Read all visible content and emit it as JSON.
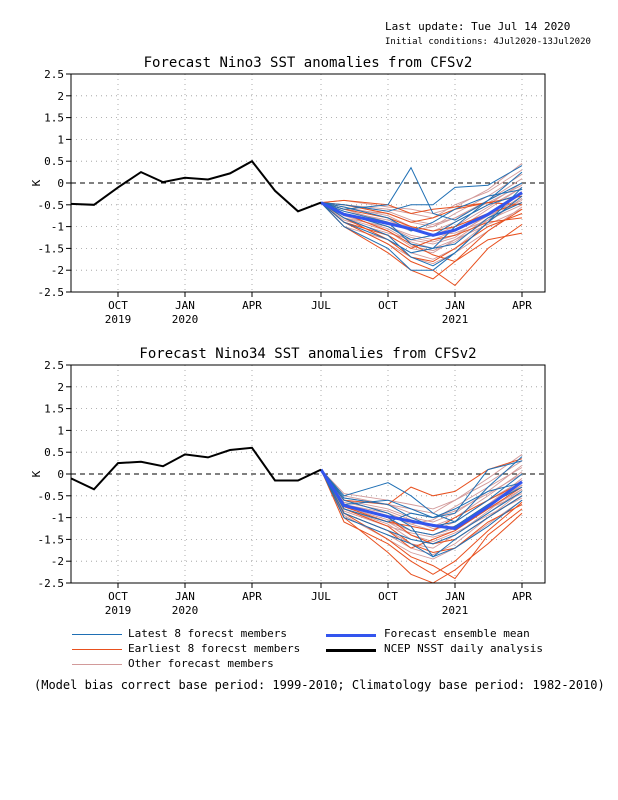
{
  "header": {
    "last_update": "Last update: Tue Jul 14 2020",
    "initial_conditions": "Initial conditions: 4Jul2020-13Jul2020"
  },
  "colors": {
    "latest": "#1f6fb4",
    "earliest": "#e8501e",
    "other": "#d29a9a",
    "mean": "#3355ee",
    "obs": "#000000"
  },
  "legend": [
    {
      "label": "Latest 8 forecst members",
      "color": "#1f6fb4",
      "style": "thin"
    },
    {
      "label": "Forecast ensemble mean",
      "color": "#3355ee",
      "style": "thick"
    },
    {
      "label": "Earliest 8 forecst members",
      "color": "#e8501e",
      "style": "thin"
    },
    {
      "label": "NCEP NSST daily analysis",
      "color": "#000000",
      "style": "thick"
    },
    {
      "label": "Other forecast members",
      "color": "#d29a9a",
      "style": "thin"
    }
  ],
  "footnote": "(Model bias correct base period: 1999-2010; Climatology base period: 1982-2010)",
  "chart_data": [
    {
      "type": "line",
      "title": "Forecast Nino3 SST anomalies from CFSv2",
      "ylabel": "K",
      "ylim": [
        -2.5,
        2.5
      ],
      "yticks": [
        "2.5",
        "2",
        "1.5",
        "1",
        "0.5",
        "0",
        "-0.5",
        "-1",
        "-1.5",
        "-2",
        "-2.5"
      ],
      "xticks": [
        {
          "month": "OCT",
          "year": "2019"
        },
        {
          "month": "JAN",
          "year": "2020"
        },
        {
          "month": "APR",
          "year": ""
        },
        {
          "month": "JUL",
          "year": ""
        },
        {
          "month": "OCT",
          "year": ""
        },
        {
          "month": "JAN",
          "year": "2021"
        },
        {
          "month": "APR",
          "year": ""
        }
      ],
      "grid": "dotted",
      "observed": [
        -0.48,
        -0.5,
        -0.1,
        0.25,
        0.02,
        0.12,
        0.08,
        0.22,
        0.5,
        -0.18,
        -0.65,
        -0.45
      ],
      "ensemble_mean": [
        -0.45,
        -0.72,
        -0.93,
        -1.05,
        -1.2,
        -1.08,
        -0.72,
        -0.22
      ],
      "members_latest": [
        [
          -0.45,
          -0.6,
          -0.5,
          0.35,
          -0.7,
          -0.85,
          -0.4,
          0.0
        ],
        [
          -0.45,
          -0.9,
          -1.3,
          -1.6,
          -1.5,
          -1.0,
          -0.4,
          0.25
        ],
        [
          -0.45,
          -0.8,
          -1.2,
          -1.7,
          -1.9,
          -1.6,
          -0.9,
          -0.1
        ],
        [
          -0.45,
          -0.55,
          -0.8,
          -1.1,
          -0.9,
          -0.6,
          -0.3,
          -0.15
        ],
        [
          -0.45,
          -1.0,
          -1.5,
          -2.0,
          -2.0,
          -1.6,
          -0.9,
          -0.3
        ],
        [
          -0.45,
          -0.5,
          -0.65,
          -0.5,
          -0.5,
          -0.1,
          -0.05,
          0.4
        ],
        [
          -0.45,
          -0.7,
          -1.0,
          -1.3,
          -1.2,
          -0.9,
          -0.5,
          -0.25
        ],
        [
          -0.45,
          -0.65,
          -0.9,
          -1.4,
          -1.5,
          -1.4,
          -0.8,
          -0.45
        ]
      ],
      "members_earliest": [
        [
          -0.45,
          -0.9,
          -1.4,
          -1.8,
          -2.0,
          -2.35,
          -1.5,
          -0.95
        ],
        [
          -0.45,
          -0.7,
          -1.1,
          -1.4,
          -1.65,
          -1.8,
          -1.3,
          -1.15
        ],
        [
          -0.45,
          -0.4,
          -0.5,
          -0.7,
          -0.6,
          -0.55,
          -0.45,
          -0.5
        ],
        [
          -0.45,
          -1.0,
          -1.6,
          -2.0,
          -2.2,
          -1.8,
          -1.1,
          -0.6
        ],
        [
          -0.45,
          -0.8,
          -1.3,
          -1.7,
          -1.8,
          -1.5,
          -1.0,
          -0.7
        ],
        [
          -0.45,
          -0.6,
          -0.8,
          -1.0,
          -1.1,
          -1.0,
          -0.7,
          -0.45
        ],
        [
          -0.45,
          -0.9,
          -1.2,
          -1.5,
          -1.3,
          -1.2,
          -0.9,
          -0.8
        ],
        [
          -0.45,
          -0.5,
          -0.7,
          -0.9,
          -0.8,
          -0.6,
          -0.45,
          -0.3
        ]
      ],
      "members_other": [
        [
          -0.45,
          -0.6,
          -0.7,
          -0.9,
          -1.0,
          -0.8,
          -0.4,
          0.1
        ],
        [
          -0.45,
          -0.8,
          -1.0,
          -1.2,
          -1.3,
          -1.1,
          -0.6,
          -0.1
        ],
        [
          -0.45,
          -0.5,
          -0.6,
          -0.7,
          -0.8,
          -0.5,
          -0.2,
          0.3
        ],
        [
          -0.45,
          -0.9,
          -1.2,
          -1.5,
          -1.6,
          -1.3,
          -0.8,
          -0.3
        ],
        [
          -0.45,
          -0.7,
          -0.9,
          -1.0,
          -1.1,
          -0.9,
          -0.5,
          0.0
        ],
        [
          -0.45,
          -0.55,
          -0.75,
          -1.0,
          -1.2,
          -1.15,
          -0.85,
          -0.5
        ],
        [
          -0.45,
          -1.0,
          -1.3,
          -1.6,
          -1.75,
          -1.5,
          -0.9,
          -0.35
        ],
        [
          -0.45,
          -0.65,
          -0.85,
          -1.05,
          -1.2,
          -1.0,
          -0.55,
          -0.1
        ],
        [
          -0.45,
          -0.4,
          -0.55,
          -0.6,
          -0.7,
          -0.55,
          -0.15,
          0.45
        ],
        [
          -0.45,
          -0.75,
          -1.05,
          -1.35,
          -1.5,
          -1.3,
          -0.95,
          -0.6
        ],
        [
          -0.45,
          -0.85,
          -1.15,
          -1.3,
          -1.4,
          -1.25,
          -0.7,
          -0.25
        ],
        [
          -0.45,
          -0.6,
          -0.9,
          -1.1,
          -1.0,
          -0.7,
          -0.3,
          0.2
        ],
        [
          -0.45,
          -0.9,
          -1.4,
          -1.7,
          -1.85,
          -1.6,
          -1.1,
          -0.55
        ],
        [
          -0.45,
          -0.5,
          -0.65,
          -0.85,
          -0.95,
          -0.8,
          -0.45,
          -0.05
        ],
        [
          -0.45,
          -0.7,
          -1.0,
          -1.25,
          -1.35,
          -1.2,
          -0.75,
          -0.4
        ],
        [
          -0.45,
          -0.8,
          -1.1,
          -1.45,
          -1.55,
          -1.35,
          -0.85,
          -0.2
        ]
      ]
    },
    {
      "type": "line",
      "title": "Forecast Nino34 SST anomalies from CFSv2",
      "ylabel": "K",
      "ylim": [
        -2.5,
        2.5
      ],
      "yticks": [
        "2.5",
        "2",
        "1.5",
        "1",
        "0.5",
        "0",
        "-0.5",
        "-1",
        "-1.5",
        "-2",
        "-2.5"
      ],
      "xticks": [
        {
          "month": "OCT",
          "year": "2019"
        },
        {
          "month": "JAN",
          "year": "2020"
        },
        {
          "month": "APR",
          "year": ""
        },
        {
          "month": "JUL",
          "year": ""
        },
        {
          "month": "OCT",
          "year": ""
        },
        {
          "month": "JAN",
          "year": "2021"
        },
        {
          "month": "APR",
          "year": ""
        }
      ],
      "grid": "dotted",
      "observed": [
        -0.1,
        -0.35,
        0.25,
        0.28,
        0.18,
        0.45,
        0.38,
        0.55,
        0.6,
        -0.15,
        -0.15,
        0.1
      ],
      "ensemble_mean": [
        0.1,
        -0.72,
        -0.98,
        -1.08,
        -1.18,
        -1.25,
        -0.75,
        -0.18
      ],
      "members_latest": [
        [
          0.1,
          -0.5,
          -0.2,
          -0.5,
          -0.9,
          -1.1,
          -0.3,
          0.4
        ],
        [
          0.1,
          -0.7,
          -0.6,
          -0.8,
          -1.0,
          -0.9,
          0.1,
          0.3
        ],
        [
          0.1,
          -0.9,
          -1.3,
          -1.5,
          -1.6,
          -1.4,
          -0.9,
          -0.4
        ],
        [
          0.1,
          -0.6,
          -0.9,
          -1.2,
          -1.9,
          -1.7,
          -1.2,
          -0.6
        ],
        [
          0.1,
          -0.8,
          -1.1,
          -0.9,
          -1.0,
          -0.8,
          -0.4,
          -0.2
        ],
        [
          0.1,
          -0.55,
          -0.7,
          -1.0,
          -1.2,
          -1.1,
          -0.6,
          0.0
        ],
        [
          0.1,
          -1.0,
          -1.4,
          -1.6,
          -1.9,
          -1.5,
          -1.0,
          -0.5
        ],
        [
          0.1,
          -0.7,
          -1.0,
          -1.3,
          -1.4,
          -1.2,
          -0.7,
          -0.3
        ]
      ],
      "members_earliest": [
        [
          0.1,
          -1.0,
          -1.8,
          -2.3,
          -2.5,
          -2.2,
          -1.6,
          -0.9
        ],
        [
          0.1,
          -0.9,
          -1.5,
          -1.9,
          -2.1,
          -2.4,
          -1.4,
          -0.8
        ],
        [
          0.1,
          -0.6,
          -0.7,
          -0.3,
          -0.5,
          -0.4,
          0.1,
          0.35
        ],
        [
          0.1,
          -0.8,
          -1.2,
          -1.6,
          -1.8,
          -1.7,
          -1.1,
          -0.7
        ],
        [
          0.1,
          -1.1,
          -1.6,
          -2.0,
          -2.3,
          -2.0,
          -1.3,
          -0.65
        ],
        [
          0.1,
          -0.7,
          -1.0,
          -1.4,
          -1.6,
          -1.5,
          -1.0,
          -0.5
        ],
        [
          0.1,
          -0.9,
          -1.3,
          -1.7,
          -1.5,
          -1.3,
          -0.8,
          -0.3
        ],
        [
          0.1,
          -0.75,
          -1.1,
          -1.2,
          -1.3,
          -1.0,
          -0.6,
          -0.2
        ]
      ],
      "members_other": [
        [
          0.1,
          -0.6,
          -0.8,
          -1.0,
          -1.1,
          -0.9,
          -0.4,
          0.2
        ],
        [
          0.1,
          -0.8,
          -1.1,
          -1.3,
          -1.4,
          -1.2,
          -0.7,
          -0.1
        ],
        [
          0.1,
          -0.5,
          -0.7,
          -0.8,
          -0.9,
          -0.6,
          -0.2,
          0.3
        ],
        [
          0.1,
          -0.9,
          -1.3,
          -1.6,
          -1.7,
          -1.4,
          -0.9,
          -0.35
        ],
        [
          0.1,
          -0.7,
          -0.9,
          -1.1,
          -1.2,
          -1.0,
          -0.5,
          0.05
        ],
        [
          0.1,
          -0.65,
          -0.85,
          -1.05,
          -1.25,
          -1.2,
          -0.8,
          -0.45
        ],
        [
          0.1,
          -1.0,
          -1.4,
          -1.7,
          -1.85,
          -1.6,
          -1.0,
          -0.4
        ],
        [
          0.1,
          -0.7,
          -0.95,
          -1.15,
          -1.3,
          -1.1,
          -0.6,
          -0.15
        ],
        [
          0.1,
          -0.45,
          -0.6,
          -0.7,
          -0.8,
          -0.6,
          -0.1,
          0.45
        ],
        [
          0.1,
          -0.8,
          -1.1,
          -1.4,
          -1.55,
          -1.35,
          -0.95,
          -0.55
        ],
        [
          0.1,
          -0.85,
          -1.2,
          -1.35,
          -1.45,
          -1.3,
          -0.75,
          -0.25
        ],
        [
          0.1,
          -0.6,
          -0.9,
          -1.15,
          -1.05,
          -0.75,
          -0.3,
          0.15
        ],
        [
          0.1,
          -0.95,
          -1.5,
          -1.8,
          -1.95,
          -1.7,
          -1.15,
          -0.6
        ],
        [
          0.1,
          -0.55,
          -0.7,
          -0.9,
          -1.0,
          -0.85,
          -0.45,
          0.0
        ],
        [
          0.1,
          -0.75,
          -1.05,
          -1.3,
          -1.4,
          -1.25,
          -0.8,
          -0.35
        ],
        [
          0.1,
          -0.8,
          -1.15,
          -1.5,
          -1.6,
          -1.4,
          -0.85,
          -0.25
        ]
      ]
    }
  ]
}
